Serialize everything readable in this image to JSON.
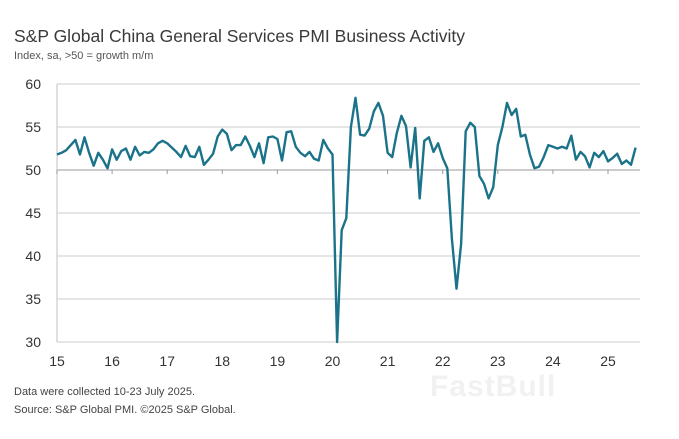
{
  "chart_data": {
    "type": "line",
    "title": "S&P Global China General Services PMI Business Activity",
    "subtitle": "Index, sa, >50 = growth m/m",
    "ylim": [
      30,
      60
    ],
    "yticks": [
      "60",
      "55",
      "50",
      "45",
      "40",
      "35",
      "30"
    ],
    "xticks": [
      "15",
      "16",
      "17",
      "18",
      "19",
      "20",
      "21",
      "22",
      "23",
      "24",
      "25"
    ],
    "x_start": "2015-01",
    "frequency": "monthly",
    "grid": true,
    "reference_line": 50,
    "line_color": "#1b7389",
    "values": [
      51.8,
      52.0,
      52.3,
      52.9,
      53.5,
      51.8,
      53.8,
      52.0,
      50.5,
      52.0,
      51.2,
      50.2,
      52.4,
      51.2,
      52.2,
      52.5,
      51.2,
      52.7,
      51.7,
      52.1,
      52.0,
      52.4,
      53.1,
      53.4,
      53.1,
      52.6,
      52.1,
      51.5,
      52.8,
      51.6,
      51.5,
      52.7,
      50.6,
      51.2,
      51.9,
      53.9,
      54.7,
      54.2,
      52.3,
      52.9,
      52.9,
      53.9,
      52.8,
      51.5,
      53.1,
      50.8,
      53.8,
      53.9,
      53.6,
      51.1,
      54.4,
      54.5,
      52.7,
      52.0,
      51.6,
      52.1,
      51.3,
      51.1,
      53.5,
      52.5,
      51.8,
      26.5,
      43.0,
      44.4,
      55.0,
      58.4,
      54.1,
      54.0,
      54.8,
      56.8,
      57.8,
      56.3,
      52.0,
      51.5,
      54.3,
      56.3,
      55.1,
      50.3,
      54.9,
      46.7,
      53.4,
      53.8,
      52.1,
      53.1,
      51.4,
      50.2,
      42.0,
      36.2,
      41.4,
      54.5,
      55.5,
      55.0,
      49.3,
      48.4,
      46.7,
      48.0,
      52.9,
      55.0,
      57.8,
      56.4,
      57.1,
      53.9,
      54.1,
      51.8,
      50.2,
      50.4,
      51.5,
      52.9,
      52.7,
      52.5,
      52.7,
      52.5,
      54.0,
      51.2,
      52.1,
      51.6,
      50.3,
      52.0,
      51.5,
      52.2,
      51.0,
      51.4,
      51.9,
      50.7,
      51.1,
      50.6,
      52.6
    ]
  },
  "footer": {
    "note": "Data were collected 10-23 July 2025.",
    "source": "Source: S&P Global PMI. ©2025 S&P Global."
  },
  "watermark": "FastBull"
}
